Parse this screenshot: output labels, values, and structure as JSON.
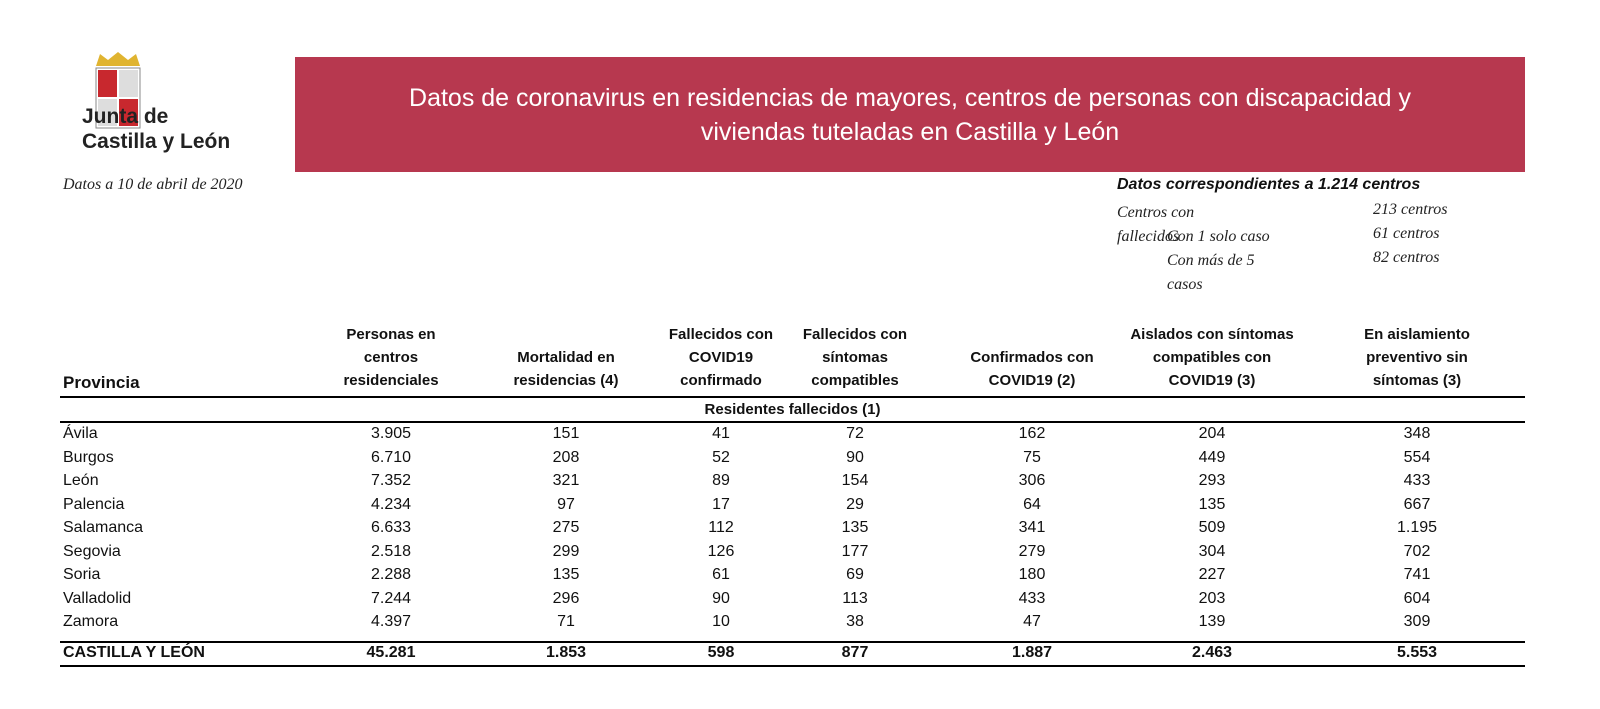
{
  "header": {
    "logo_text": [
      "Junta de",
      "Castilla y León"
    ],
    "title": [
      "Datos de coronavirus en residencias de mayores, centros de personas con discapacidad y",
      "viviendas tuteladas en Castilla y León"
    ]
  },
  "date": "Datos a 10 de abril de 2020",
  "summary": {
    "title": "Datos correspondientes a 1.214 centros",
    "rows": [
      [
        "Centros con fallecidos",
        "213 centros"
      ],
      [
        "Con 1 solo caso",
        "61 centros"
      ],
      [
        "Con más de 5 casos",
        "82 centros"
      ]
    ]
  },
  "table": {
    "headers": [
      [
        "Provincia"
      ],
      [
        "Personas en",
        "centros",
        "residenciales"
      ],
      [
        "Mortalidad en",
        "residencias  (4)"
      ],
      [
        "Fallecidos con",
        "COVID19",
        "confirmado"
      ],
      [
        "Fallecidos con",
        "síntomas",
        "compatibles"
      ],
      [
        "Confirmados con",
        "COVID19 (2)"
      ],
      [
        "Aislados con síntomas",
        "compatibles con",
        "COVID19 (3)"
      ],
      [
        "En aislamiento",
        "preventivo sin",
        "síntomas (3)"
      ]
    ],
    "group_header": "Residentes fallecidos (1)",
    "rows": [
      [
        "Ávila",
        "3.905",
        "151",
        "41",
        "72",
        "162",
        "204",
        "348"
      ],
      [
        "Burgos",
        "6.710",
        "208",
        "52",
        "90",
        "75",
        "449",
        "554"
      ],
      [
        "León",
        "7.352",
        "321",
        "89",
        "154",
        "306",
        "293",
        "433"
      ],
      [
        "Palencia",
        "4.234",
        "97",
        "17",
        "29",
        "64",
        "135",
        "667"
      ],
      [
        "Salamanca",
        "6.633",
        "275",
        "112",
        "135",
        "341",
        "509",
        "1.195"
      ],
      [
        "Segovia",
        "2.518",
        "299",
        "126",
        "177",
        "279",
        "304",
        "702"
      ],
      [
        "Soria",
        "2.288",
        "135",
        "61",
        "69",
        "180",
        "227",
        "741"
      ],
      [
        "Valladolid",
        "7.244",
        "296",
        "90",
        "113",
        "433",
        "203",
        "604"
      ],
      [
        "Zamora",
        "4.397",
        "71",
        "10",
        "38",
        "47",
        "139",
        "309"
      ]
    ],
    "total": [
      "CASTILLA Y LEÓN",
      "45.281",
      "1.853",
      "598",
      "877",
      "1.887",
      "2.463",
      "5.553"
    ]
  }
}
